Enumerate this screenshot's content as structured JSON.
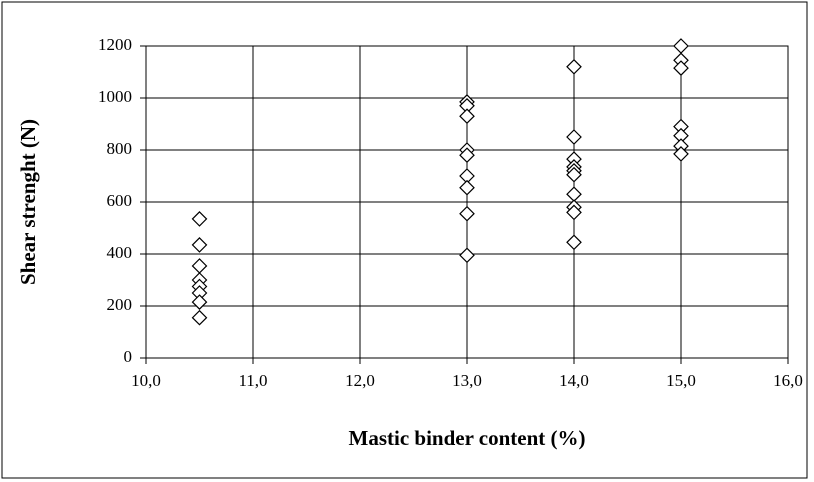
{
  "chart_data": {
    "type": "scatter",
    "x_label": "Mastic binder content (%)",
    "y_label": "Shear strenght (N)",
    "x": [
      10.5,
      10.5,
      10.5,
      10.5,
      10.5,
      10.5,
      10.5,
      10.5,
      13,
      13,
      13,
      13,
      13,
      13,
      13,
      13,
      13,
      14,
      14,
      14,
      14,
      14,
      14,
      14,
      14,
      14,
      14,
      15,
      15,
      15,
      15,
      15,
      15,
      15
    ],
    "values": [
      535,
      435,
      354,
      300,
      275,
      250,
      215,
      155,
      985,
      970,
      930,
      800,
      780,
      700,
      655,
      555,
      395,
      1120,
      850,
      765,
      735,
      720,
      705,
      630,
      580,
      560,
      445,
      1200,
      1145,
      1115,
      890,
      855,
      815,
      785
    ],
    "color": "#000000",
    "xlim": [
      10,
      16
    ],
    "xticks": [
      {
        "value": 10,
        "label": "10,0"
      },
      {
        "value": 11,
        "label": "11,0"
      },
      {
        "value": 12,
        "label": "12,0"
      },
      {
        "value": 13,
        "label": "13,0"
      },
      {
        "value": 14,
        "label": "14,0"
      },
      {
        "value": 15,
        "label": "15,0"
      },
      {
        "value": 16,
        "label": "16,0"
      }
    ],
    "ylim": [
      0,
      1200
    ],
    "yticks": [
      0,
      200,
      400,
      600,
      800,
      1000,
      1200
    ],
    "grid": true
  }
}
